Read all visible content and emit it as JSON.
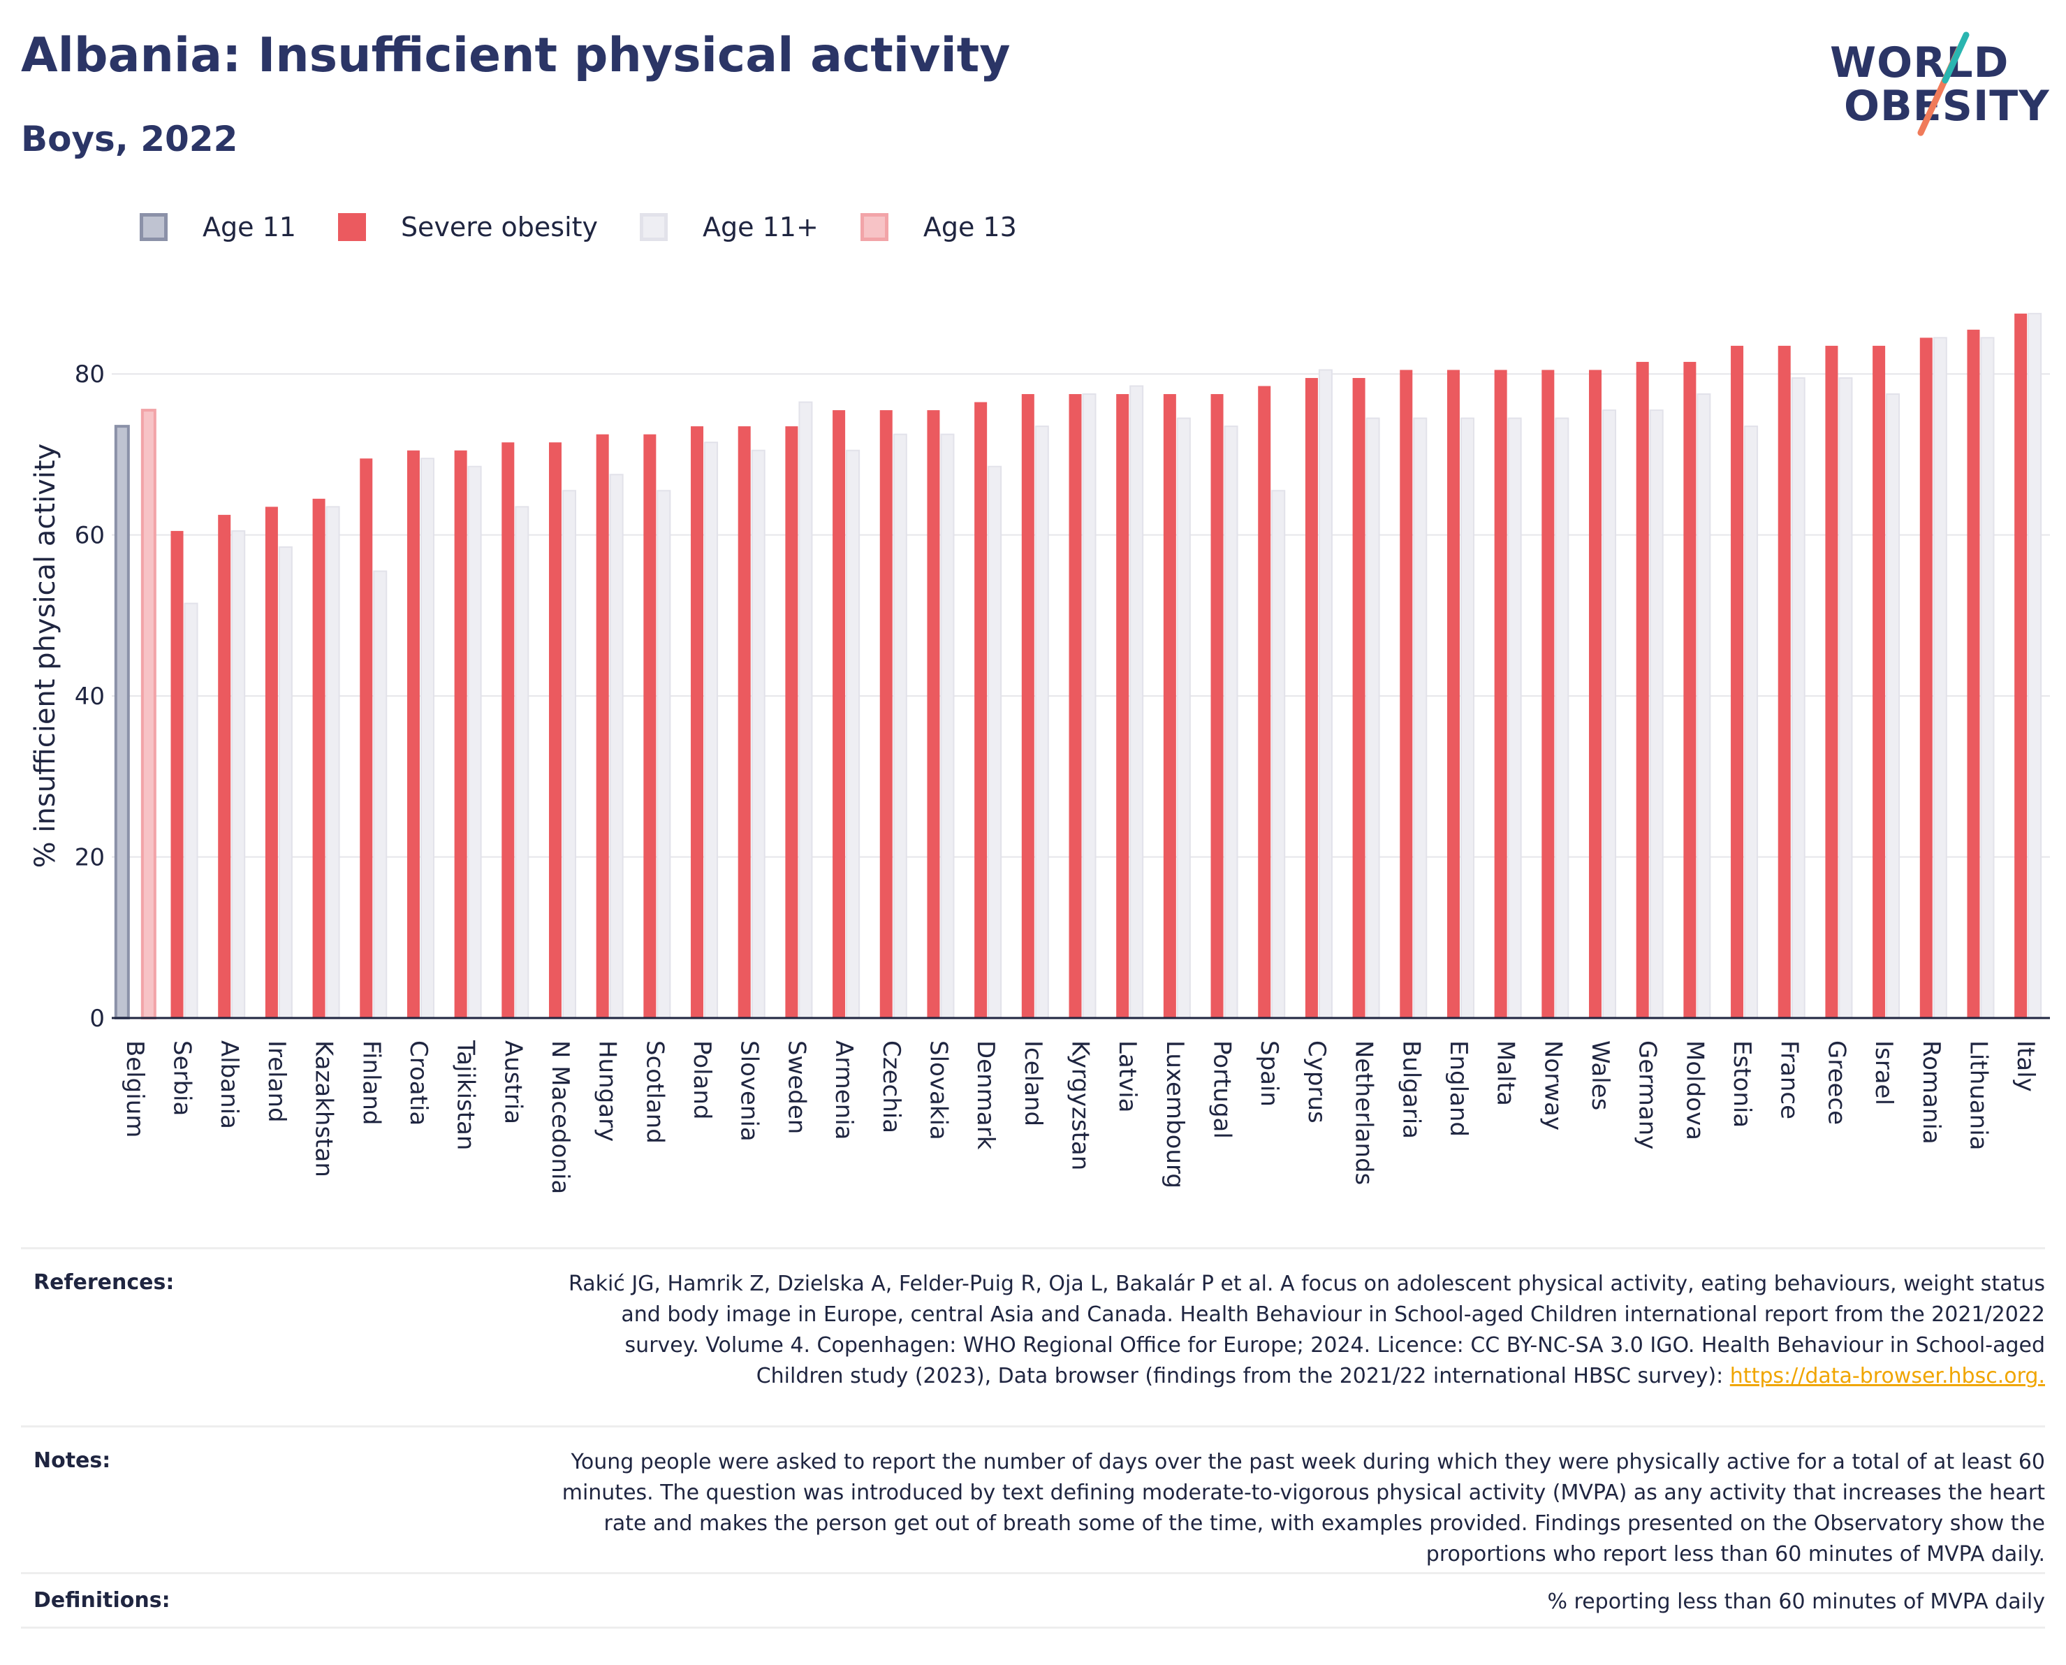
{
  "title": "Albania: Insufficient physical activity",
  "subtitle": "Boys, 2022",
  "logo": {
    "line1": "WORLD",
    "line2": "OBESITY"
  },
  "legend": [
    {
      "label": "Age 11",
      "fill": "#bfc3d1",
      "stroke": "#8b91a8"
    },
    {
      "label": "Severe obesity",
      "fill": "#eb5a5f",
      "stroke": "#eb5a5f"
    },
    {
      "label": "Age 11+",
      "fill": "#eeeef3",
      "stroke": "#e2e2ea"
    },
    {
      "label": "Age 13",
      "fill": "#f7c3c6",
      "stroke": "#f2a4a8"
    }
  ],
  "chart_data": {
    "type": "bar",
    "ylabel": "% insufficient physical activity",
    "ylim": [
      0,
      90
    ],
    "yticks": [
      0,
      20,
      40,
      60,
      80
    ],
    "grid": true,
    "legend_position": "top-left",
    "categories": [
      "Belgium",
      "Serbia",
      "Albania",
      "Ireland",
      "Kazakhstan",
      "Finland",
      "Croatia",
      "Tajikistan",
      "Austria",
      "N Macedonia",
      "Hungary",
      "Scotland",
      "Poland",
      "Slovenia",
      "Sweden",
      "Armenia",
      "Czechia",
      "Slovakia",
      "Denmark",
      "Iceland",
      "Kyrgyzstan",
      "Latvia",
      "Luxembourg",
      "Portugal",
      "Spain",
      "Cyprus",
      "Netherlands",
      "Bulgaria",
      "England",
      "Malta",
      "Norway",
      "Wales",
      "Germany",
      "Moldova",
      "Estonia",
      "France",
      "Greece",
      "Israel",
      "Romania",
      "Lithuania",
      "Italy"
    ],
    "series": [
      {
        "name": "Age 11",
        "color": "#bfc3d1",
        "stroke": "#8b91a8",
        "values": [
          73.5,
          null,
          null,
          null,
          null,
          null,
          null,
          null,
          null,
          null,
          null,
          null,
          null,
          null,
          null,
          null,
          null,
          null,
          null,
          null,
          null,
          null,
          null,
          null,
          null,
          null,
          null,
          null,
          null,
          null,
          null,
          null,
          null,
          null,
          null,
          null,
          null,
          null,
          null,
          null,
          null
        ]
      },
      {
        "name": "Age 13",
        "color": "#f7c3c6",
        "stroke": "#f2a4a8",
        "values": [
          75.5,
          null,
          null,
          null,
          null,
          null,
          null,
          null,
          null,
          null,
          null,
          null,
          null,
          null,
          null,
          null,
          null,
          null,
          null,
          null,
          null,
          null,
          null,
          null,
          null,
          null,
          null,
          null,
          null,
          null,
          null,
          null,
          null,
          null,
          null,
          null,
          null,
          null,
          null,
          null,
          null
        ]
      },
      {
        "name": "Severe obesity",
        "color": "#eb5a5f",
        "stroke": "#eb5a5f",
        "values": [
          null,
          60.5,
          62.5,
          63.5,
          64.5,
          69.5,
          70.5,
          70.5,
          71.5,
          71.5,
          72.5,
          72.5,
          73.5,
          73.5,
          73.5,
          75.5,
          75.5,
          75.5,
          76.5,
          77.5,
          77.5,
          77.5,
          77.5,
          77.5,
          78.5,
          79.5,
          79.5,
          80.5,
          80.5,
          80.5,
          80.5,
          80.5,
          81.5,
          81.5,
          83.5,
          83.5,
          83.5,
          83.5,
          84.5,
          85.5,
          87.5
        ]
      },
      {
        "name": "Age 11+",
        "color": "#eeeef3",
        "stroke": "#e2e2ea",
        "values": [
          null,
          51.5,
          60.5,
          58.5,
          63.5,
          55.5,
          69.5,
          68.5,
          63.5,
          65.5,
          67.5,
          65.5,
          71.5,
          70.5,
          76.5,
          70.5,
          72.5,
          72.5,
          68.5,
          73.5,
          77.5,
          78.5,
          74.5,
          73.5,
          65.5,
          80.5,
          74.5,
          74.5,
          74.5,
          74.5,
          74.5,
          75.5,
          75.5,
          77.5,
          73.5,
          79.5,
          79.5,
          77.5,
          84.5,
          84.5,
          87.5
        ]
      }
    ]
  },
  "footer": {
    "references_label": "References:",
    "references_text": "Rakić JG, Hamrik Z, Dzielska A, Felder-Puig R, Oja L, Bakalár P et al. A focus on adolescent physical activity, eating behaviours, weight status and body image in Europe, central Asia and Canada. Health Behaviour in School-aged Children international report from the 2021/2022 survey. Volume 4. Copenhagen: WHO Regional Office for Europe; 2024. Licence: CC BY-NC-SA 3.0 IGO. Health Behaviour in School-aged Children study (2023), Data browser (findings from the 2021/22 international HBSC survey): ",
    "references_link": "https://data-browser.hbsc.org.",
    "notes_label": "Notes:",
    "notes_text": "Young people were asked to report the number of days over the past week during which they were physically active for a total of at least 60 minutes. The question was introduced by text defining moderate-to-vigorous physical activity (MVPA) as any activity that increases the heart rate and makes the person get out of breath some of the time, with examples provided. Findings presented on the Observatory show the proportions who report less than 60 minutes of MVPA daily.",
    "definitions_label": "Definitions:",
    "definitions_text": "% reporting less than 60 minutes of MVPA daily"
  }
}
